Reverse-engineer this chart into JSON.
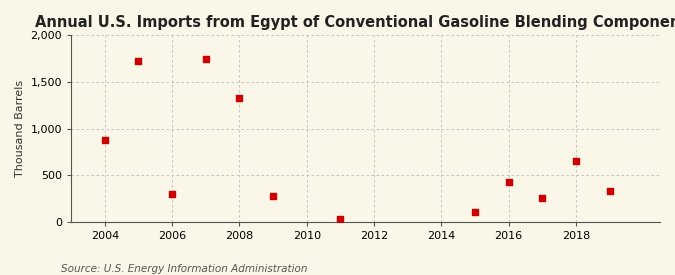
{
  "title": "Annual U.S. Imports from Egypt of Conventional Gasoline Blending Components",
  "ylabel": "Thousand Barrels",
  "source": "Source: U.S. Energy Information Administration",
  "years": [
    2004,
    2005,
    2006,
    2007,
    2008,
    2009,
    2011,
    2015,
    2016,
    2017,
    2018,
    2019
  ],
  "values": [
    875,
    1725,
    300,
    1750,
    1325,
    275,
    30,
    100,
    430,
    250,
    650,
    325
  ],
  "xlim": [
    2003.0,
    2020.5
  ],
  "ylim": [
    0,
    2000
  ],
  "xticks": [
    2004,
    2006,
    2008,
    2010,
    2012,
    2014,
    2016,
    2018
  ],
  "yticks": [
    0,
    500,
    1000,
    1500,
    2000
  ],
  "marker_color": "#cc0000",
  "marker": "s",
  "marker_size": 4,
  "background_color": "#faf6e8",
  "grid_color": "#bbbbbb",
  "title_fontsize": 10.5,
  "label_fontsize": 8,
  "tick_fontsize": 8,
  "source_fontsize": 7.5
}
